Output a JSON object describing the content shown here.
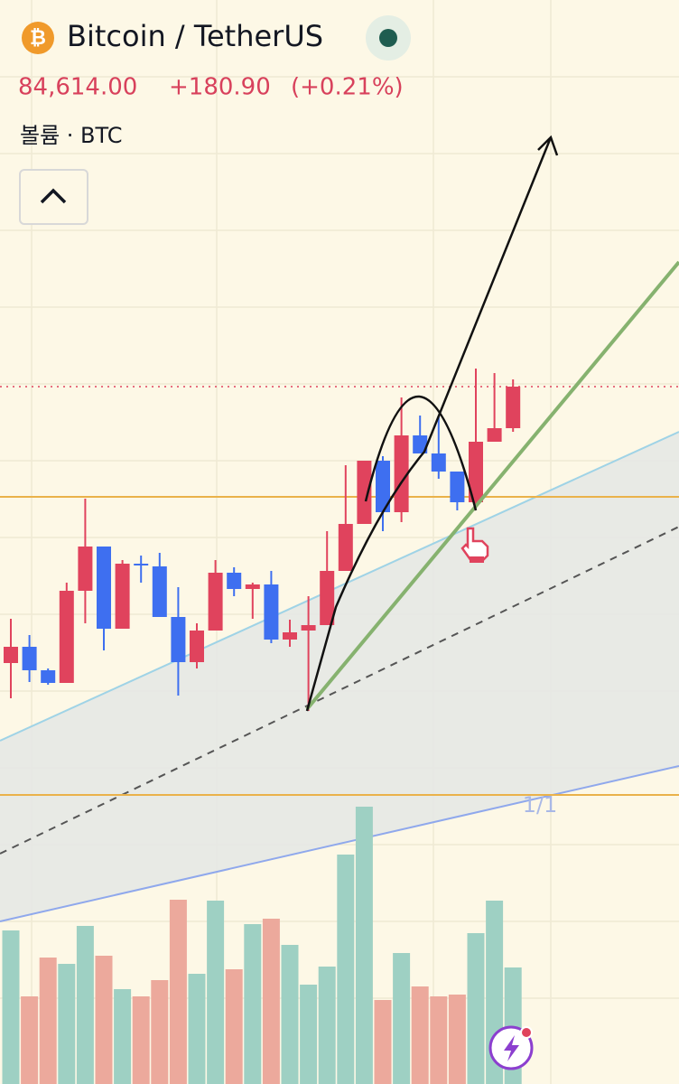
{
  "header": {
    "title": "Bitcoin / TetherUS",
    "price": "84,614.00",
    "change": "+180.90",
    "change_percent": "(+0.21%)",
    "volume_label": "볼륨 · BTC"
  },
  "chart_data": {
    "type": "candlestick",
    "open": [
      81554,
      81734,
      81474,
      81334,
      82354,
      82844,
      81934,
      82654,
      82624,
      82064,
      81564,
      81914,
      82554,
      82374,
      82424,
      81814,
      81914,
      81974,
      82574,
      83094,
      83794,
      83224,
      84074,
      83874,
      83674,
      83334,
      84004,
      84154
    ],
    "high": [
      82044,
      81864,
      81494,
      82444,
      83374,
      82844,
      82694,
      82744,
      82774,
      82394,
      81994,
      82694,
      82614,
      82444,
      82574,
      82034,
      82294,
      83014,
      83744,
      83794,
      83844,
      84494,
      84294,
      84294,
      83674,
      84814,
      84764,
      84694
    ],
    "low": [
      81164,
      81344,
      81314,
      81334,
      81994,
      81694,
      81934,
      82444,
      82064,
      81194,
      81494,
      81914,
      82294,
      82044,
      81774,
      81734,
      81024,
      81974,
      82574,
      83094,
      83014,
      83114,
      83874,
      83594,
      83244,
      83274,
      84004,
      84114
    ],
    "close": [
      81734,
      81474,
      81334,
      82354,
      82844,
      81934,
      82654,
      82634,
      82064,
      81564,
      81914,
      82554,
      82374,
      82424,
      81814,
      81894,
      81974,
      82574,
      83094,
      83794,
      83224,
      84074,
      83874,
      83674,
      83334,
      84004,
      84154,
      84614
    ],
    "up_color": "#e0435d",
    "down_color": "#3e6ff0",
    "ylim": [
      76894,
      88894
    ],
    "levels": [
      83394,
      80094
    ],
    "level_color": "#eab24a",
    "volume": {
      "values": [
        170,
        97,
        140,
        133,
        175,
        142,
        105,
        97,
        115,
        204,
        122,
        203,
        127,
        177,
        183,
        154,
        110,
        130,
        254,
        307,
        93,
        145,
        108,
        97,
        99,
        167,
        203,
        129
      ],
      "colors": [
        "#9ed0c3",
        "#eca99c",
        "#eca99c",
        "#9ed0c3",
        "#9ed0c3",
        "#eca99c",
        "#9ed0c3",
        "#eca99c",
        "#eca99c",
        "#eca99c",
        "#9ed0c3",
        "#9ed0c3",
        "#eca99c",
        "#9ed0c3",
        "#eca99c",
        "#9ed0c3",
        "#9ed0c3",
        "#9ed0c3",
        "#9ed0c3",
        "#9ed0c3",
        "#eca99c",
        "#9ed0c3",
        "#eca99c",
        "#eca99c",
        "#eca99c",
        "#9ed0c3",
        "#9ed0c3",
        "#9ed0c3"
      ]
    },
    "vlim": [
      0,
      400
    ],
    "annotation": "1/1"
  }
}
